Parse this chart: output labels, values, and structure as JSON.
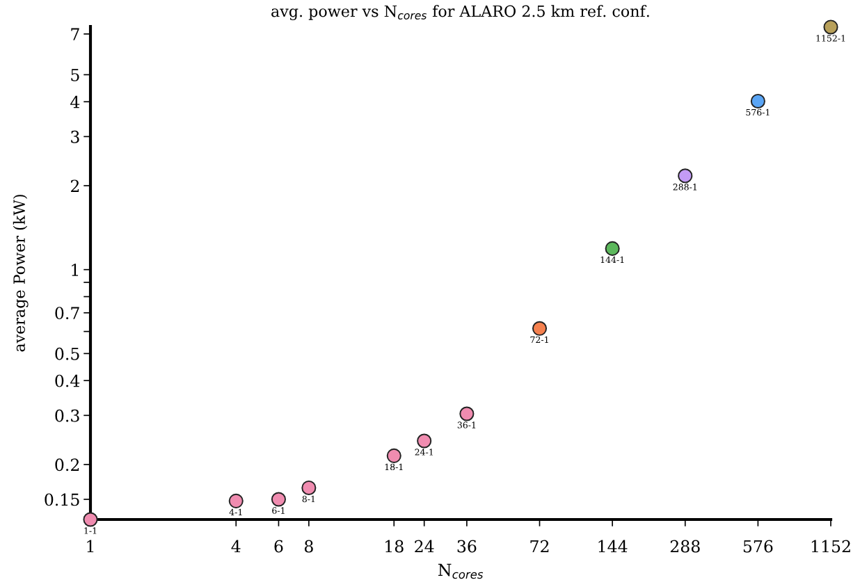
{
  "chart_data": {
    "type": "scatter",
    "title": "avg. power vs N$_{cores}$ for ALARO 2.5 km ref. conf.",
    "xlabel": "N$_{cores}$",
    "ylabel": "average Power (kW)",
    "x": [
      1,
      4,
      6,
      8,
      18,
      24,
      36,
      72,
      144,
      288,
      576,
      1152
    ],
    "values": [
      0.127,
      0.148,
      0.15,
      0.165,
      0.215,
      0.243,
      0.304,
      0.615,
      1.19,
      2.17,
      4.02,
      7.41
    ],
    "colors": [
      "#f08cb0",
      "#f08cb0",
      "#f08cb0",
      "#f08cb0",
      "#f08cb0",
      "#f08cb0",
      "#f08cb0",
      "#f5814f",
      "#5cb85c",
      "#c39bf5",
      "#5aa5f5",
      "#b8a05a"
    ],
    "log": "xy",
    "marker": "circle",
    "grid": false,
    "legend": false,
    "xlim": [
      1,
      1152
    ],
    "ylim": [
      0.127,
      7.45
    ],
    "xticks": [
      1,
      4,
      6,
      8,
      18,
      24,
      36,
      72,
      144,
      288,
      576,
      1152
    ],
    "yticks": [
      0.15,
      0.2,
      0.3,
      0.4,
      0.5,
      {
        "value": 0.6,
        "label": null
      },
      0.7,
      {
        "value": 0.8,
        "label": null
      },
      {
        "value": 0.9,
        "label": null
      },
      1,
      2,
      3,
      4,
      5,
      7
    ],
    "annotations": [
      {
        "text": "1-1",
        "x": 1,
        "y": 0.127
      },
      {
        "text": "4-1",
        "x": 4,
        "y": 0.148
      },
      {
        "text": "6-1",
        "x": 6,
        "y": 0.15
      },
      {
        "text": "8-1",
        "x": 8,
        "y": 0.165
      },
      {
        "text": "18-1",
        "x": 18,
        "y": 0.215
      },
      {
        "text": "24-1",
        "x": 24,
        "y": 0.243
      },
      {
        "text": "36-1",
        "x": 36,
        "y": 0.304
      },
      {
        "text": "72-1",
        "x": 72,
        "y": 0.615
      },
      {
        "text": "144-1",
        "x": 144,
        "y": 1.19
      },
      {
        "text": "288-1",
        "x": 288,
        "y": 2.17
      },
      {
        "text": "576-1",
        "x": 576,
        "y": 4.02
      },
      {
        "text": "1152-1",
        "x": 1152,
        "y": 7.41
      }
    ]
  }
}
